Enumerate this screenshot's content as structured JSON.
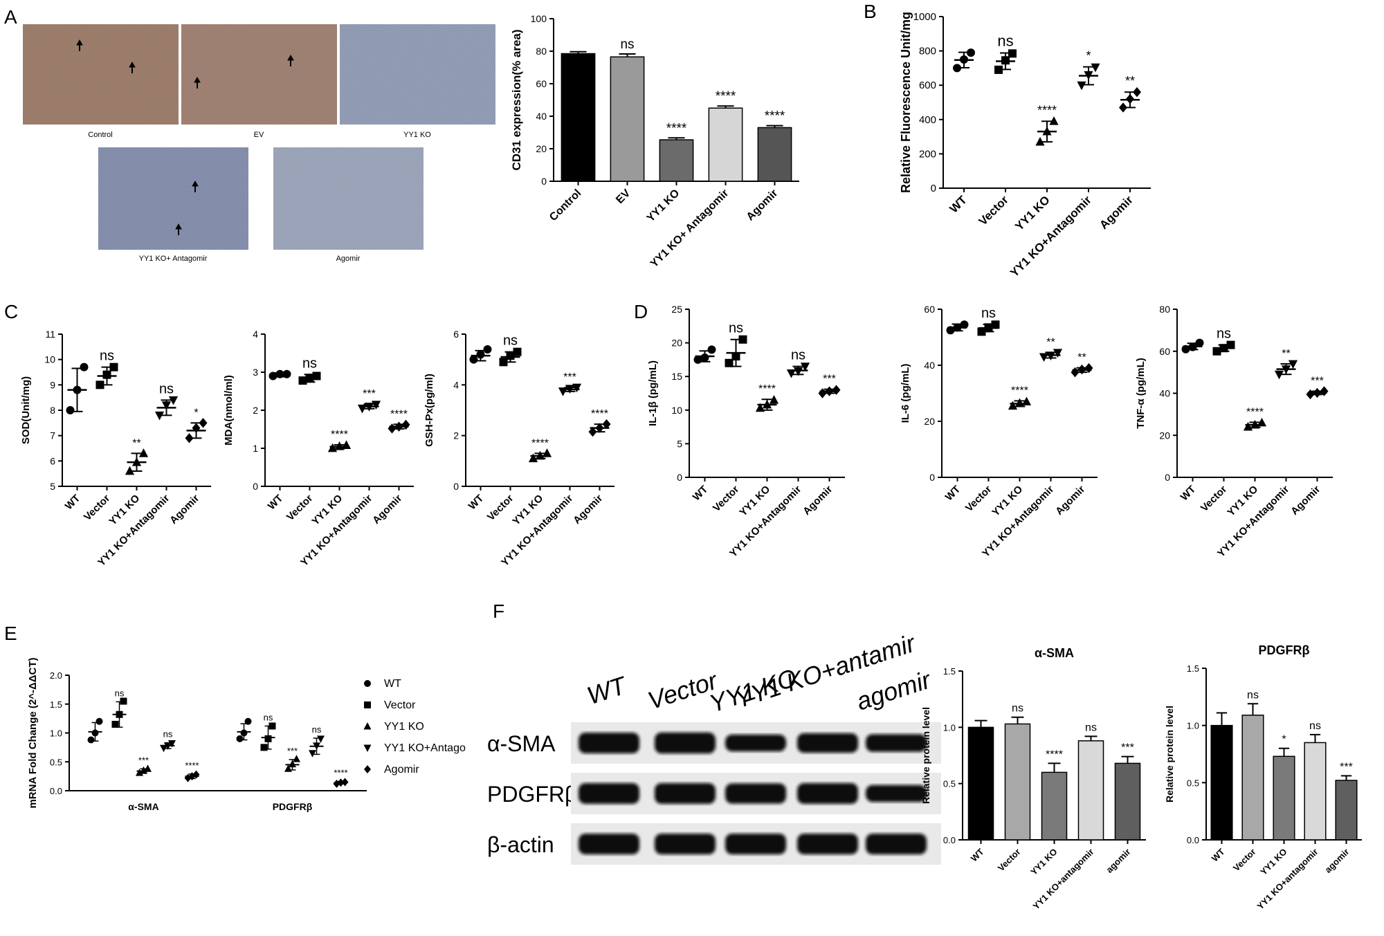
{
  "panels": {
    "a": "A",
    "b": "B",
    "c": "C",
    "d": "D",
    "e": "E",
    "f": "F"
  },
  "micrographs": {
    "captions": [
      "Control",
      "EV",
      "YY1 KO",
      "YY1  KO+ Antagomir",
      "Agomir"
    ],
    "tint": [
      "#a68572",
      "#a8897a",
      "#9aa6bf",
      "#8d97b6",
      "#a5aec4"
    ]
  },
  "blot": {
    "lanes": [
      "WT",
      "Vector",
      "YY1 KO",
      "YY1 KO+antamir",
      "agomir"
    ],
    "rows": [
      "α-SMA",
      "PDGFRβ",
      "β-actin"
    ],
    "intensity": [
      [
        1.0,
        1.03,
        0.6,
        0.88,
        0.68
      ],
      [
        1.0,
        1.0,
        0.95,
        1.0,
        0.6
      ],
      [
        1.0,
        1.0,
        1.0,
        1.0,
        1.0
      ]
    ]
  },
  "legend_e": [
    "WT",
    "Vector",
    "YY1 KO",
    "YY1 KO+Antago",
    "Agomir"
  ],
  "chart_data": [
    {
      "id": "cd31",
      "type": "bar",
      "categories": [
        "Control",
        "EV",
        "YY1 KO",
        "YY1 KO+ Antagomir",
        "Agomir"
      ],
      "values": [
        78.5,
        76.5,
        25.5,
        45,
        33
      ],
      "errors": [
        1.2,
        1.8,
        1.2,
        1.3,
        1.2
      ],
      "stars": [
        "",
        "ns",
        "****",
        "****",
        "****"
      ],
      "colors": [
        "#000000",
        "#9a9a9a",
        "#6b6b6b",
        "#d6d6d6",
        "#555555"
      ],
      "ylabel": "CD31 expression(% area)",
      "ylim": [
        0,
        100
      ],
      "yticks": [
        0,
        20,
        40,
        60,
        80,
        100
      ]
    },
    {
      "id": "ros",
      "type": "scatter",
      "categories": [
        "WT",
        "Vector",
        "YY1 KO",
        "YY1 KO+Antagomir",
        "Agomir"
      ],
      "points": [
        [
          700,
          750,
          790
        ],
        [
          690,
          745,
          785
        ],
        [
          270,
          330,
          390
        ],
        [
          600,
          660,
          705
        ],
        [
          470,
          520,
          560
        ]
      ],
      "means": [
        747,
        740,
        330,
        655,
        515
      ],
      "sds": [
        45,
        48,
        60,
        52,
        45
      ],
      "stars": [
        "",
        "ns",
        "****",
        "*",
        "**"
      ],
      "ylabel": "Relative Fluorescence Unit/mg",
      "ylim": [
        0,
        1000
      ],
      "yticks": [
        0,
        200,
        400,
        600,
        800,
        1000
      ]
    },
    {
      "id": "sod",
      "type": "scatter",
      "categories": [
        "WT",
        "Vector",
        "YY1 KO",
        "YY1 KO+Antagomir",
        "Agomir"
      ],
      "points": [
        [
          8.0,
          8.8,
          9.7
        ],
        [
          9.0,
          9.4,
          9.7
        ],
        [
          5.6,
          5.95,
          6.3
        ],
        [
          7.8,
          8.2,
          8.4
        ],
        [
          6.9,
          7.3,
          7.5
        ]
      ],
      "means": [
        8.8,
        9.35,
        5.95,
        8.1,
        7.2
      ],
      "sds": [
        0.85,
        0.35,
        0.35,
        0.3,
        0.3
      ],
      "stars": [
        "",
        "ns",
        "**",
        "ns",
        "*"
      ],
      "ylabel": "SOD(Unit/mg)",
      "ylim": [
        5,
        11
      ],
      "yticks": [
        5,
        6,
        7,
        8,
        9,
        10,
        11
      ]
    },
    {
      "id": "mda",
      "type": "scatter",
      "categories": [
        "WT",
        "Vector",
        "YY1 KO",
        "YY1 KO+Antagomir",
        "Agomir"
      ],
      "points": [
        [
          2.9,
          2.95,
          2.95
        ],
        [
          2.78,
          2.85,
          2.9
        ],
        [
          1.0,
          1.05,
          1.08
        ],
        [
          2.05,
          2.1,
          2.15
        ],
        [
          1.52,
          1.57,
          1.62
        ]
      ],
      "means": [
        2.93,
        2.84,
        1.04,
        2.1,
        1.57
      ],
      "sds": [
        0.05,
        0.1,
        0.05,
        0.06,
        0.06
      ],
      "stars": [
        "",
        "ns",
        "****",
        "***",
        "****"
      ],
      "ylabel": "MDA(nmol/ml)",
      "ylim": [
        0,
        4
      ],
      "yticks": [
        0,
        1,
        2,
        3,
        4
      ]
    },
    {
      "id": "gsh",
      "type": "scatter",
      "categories": [
        "WT",
        "Vector",
        "YY1 KO",
        "YY1 KO+Antagomir",
        "Agomir"
      ],
      "points": [
        [
          5.0,
          5.2,
          5.4
        ],
        [
          4.9,
          5.15,
          5.3
        ],
        [
          1.1,
          1.2,
          1.3
        ],
        [
          3.75,
          3.85,
          3.9
        ],
        [
          2.15,
          2.3,
          2.45
        ]
      ],
      "means": [
        5.15,
        5.1,
        1.2,
        3.82,
        2.3
      ],
      "sds": [
        0.2,
        0.2,
        0.1,
        0.08,
        0.15
      ],
      "stars": [
        "",
        "ns",
        "****",
        "***",
        "****"
      ],
      "ylabel": "GSH-Px(pg/ml)",
      "ylim": [
        0,
        6
      ],
      "yticks": [
        0,
        2,
        4,
        6
      ]
    },
    {
      "id": "il1b",
      "type": "scatter",
      "categories": [
        "WT",
        "Vector",
        "YY1 KO",
        "YY1 KO+Antagomir",
        "Agomir"
      ],
      "points": [
        [
          17.5,
          17.8,
          19.0
        ],
        [
          17.0,
          18.0,
          20.5
        ],
        [
          10.3,
          10.8,
          11.5
        ],
        [
          15.5,
          15.8,
          16.5
        ],
        [
          12.5,
          12.8,
          13.0
        ]
      ],
      "means": [
        18.0,
        18.5,
        10.8,
        15.9,
        12.8
      ],
      "sds": [
        0.8,
        2.0,
        0.8,
        0.6,
        0.3
      ],
      "stars": [
        "",
        "ns",
        "****",
        "ns",
        "***"
      ],
      "ylabel": "IL-1β (pg/mL)",
      "ylim": [
        0,
        25
      ],
      "yticks": [
        0,
        5,
        10,
        15,
        20,
        25
      ]
    },
    {
      "id": "il6",
      "type": "scatter",
      "categories": [
        "WT",
        "Vector",
        "YY1 KO",
        "YY1 KO+Antagomir",
        "Agomir"
      ],
      "points": [
        [
          52.5,
          53.5,
          54.5
        ],
        [
          52,
          53.5,
          54.5
        ],
        [
          25.5,
          26.5,
          27.0
        ],
        [
          43,
          43.5,
          44.5
        ],
        [
          37.5,
          38.5,
          39.0
        ]
      ],
      "means": [
        53.5,
        53.3,
        26.3,
        43.6,
        38.3
      ],
      "sds": [
        1.2,
        1.3,
        1.0,
        1.0,
        0.8
      ],
      "stars": [
        "",
        "ns",
        "****",
        "**",
        "**"
      ],
      "ylabel": "IL-6 (pg/mL)",
      "ylim": [
        0,
        60
      ],
      "yticks": [
        0,
        20,
        40,
        60
      ]
    },
    {
      "id": "tnf",
      "type": "scatter",
      "categories": [
        "WT",
        "Vector",
        "YY1 KO",
        "YY1 KO+Antagomir",
        "Agomir"
      ],
      "points": [
        [
          61,
          62,
          64
        ],
        [
          60,
          61.5,
          63
        ],
        [
          24,
          25,
          26
        ],
        [
          49,
          51.5,
          54
        ],
        [
          39.5,
          40.2,
          41
        ]
      ],
      "means": [
        62.3,
        61.5,
        25.0,
        51.5,
        40.2
      ],
      "sds": [
        1.5,
        1.5,
        1.2,
        2.5,
        0.8
      ],
      "stars": [
        "",
        "ns",
        "****",
        "**",
        "***"
      ],
      "ylabel": "TNF-α (pg/mL)",
      "ylim": [
        0,
        80
      ],
      "yticks": [
        0,
        20,
        40,
        60,
        80
      ]
    },
    {
      "id": "mrna",
      "type": "scatter",
      "groups": [
        "α-SMA",
        "PDGFRβ"
      ],
      "series": [
        {
          "name": "WT",
          "marker": "circle",
          "points": [
            [
              0.88,
              1.0,
              1.2
            ],
            [
              0.9,
              1.0,
              1.2
            ]
          ],
          "means": [
            1.02,
            1.02
          ],
          "sds": [
            0.16,
            0.14
          ]
        },
        {
          "name": "Vector",
          "marker": "square",
          "points": [
            [
              1.15,
              1.32,
              1.55
            ],
            [
              0.75,
              0.9,
              1.12
            ]
          ],
          "means": [
            1.32,
            0.92
          ],
          "sds": [
            0.22,
            0.2
          ]
        },
        {
          "name": "YY1 KO",
          "marker": "triangle-up",
          "points": [
            [
              0.31,
              0.35,
              0.38
            ],
            [
              0.38,
              0.46,
              0.55
            ]
          ],
          "means": [
            0.34,
            0.45
          ],
          "sds": [
            0.04,
            0.09
          ]
        },
        {
          "name": "YY1 KO+Antago",
          "marker": "triangle-down",
          "points": [
            [
              0.74,
              0.78,
              0.82
            ],
            [
              0.65,
              0.78,
              0.9
            ]
          ],
          "means": [
            0.78,
            0.77
          ],
          "sds": [
            0.05,
            0.14
          ]
        },
        {
          "name": "Agomir",
          "marker": "diamond",
          "points": [
            [
              0.22,
              0.25,
              0.28
            ],
            [
              0.12,
              0.14,
              0.15
            ]
          ],
          "means": [
            0.25,
            0.14
          ],
          "sds": [
            0.04,
            0.02
          ]
        }
      ],
      "stars": [
        [
          "",
          "ns",
          "***",
          "ns",
          "****"
        ],
        [
          "",
          "ns",
          "***",
          "ns",
          "****"
        ]
      ],
      "ylabel": "mRNA Fold Change (2^-ΔΔCT)",
      "ylim": [
        0,
        2.0
      ],
      "yticks": [
        0.0,
        0.5,
        1.0,
        1.5,
        2.0
      ]
    },
    {
      "id": "asma",
      "type": "bar",
      "title": "α-SMA",
      "categories": [
        "WT",
        "Vector",
        "YY1 KO",
        "YY1 KO+antagomir",
        "agomir"
      ],
      "values": [
        1.0,
        1.03,
        0.6,
        0.88,
        0.68
      ],
      "errors": [
        0.06,
        0.06,
        0.08,
        0.04,
        0.06
      ],
      "stars": [
        "",
        "ns",
        "****",
        "ns",
        "***"
      ],
      "colors": [
        "#000000",
        "#a8a8a8",
        "#7a7a7a",
        "#d9d9d9",
        "#5f5f5f"
      ],
      "ylabel": "Relative protein level",
      "ylim": [
        0,
        1.5
      ],
      "yticks": [
        0.0,
        0.5,
        1.0,
        1.5
      ]
    },
    {
      "id": "pdgfrb",
      "type": "bar",
      "title": "PDGFRβ",
      "categories": [
        "WT",
        "Vector",
        "YY1 KO",
        "YY1 KO+antagomir",
        "agomir"
      ],
      "values": [
        1.0,
        1.09,
        0.73,
        0.85,
        0.52
      ],
      "errors": [
        0.11,
        0.1,
        0.07,
        0.07,
        0.04
      ],
      "stars": [
        "",
        "ns",
        "*",
        "ns",
        "***"
      ],
      "colors": [
        "#000000",
        "#a8a8a8",
        "#7a7a7a",
        "#d9d9d9",
        "#5f5f5f"
      ],
      "ylabel": "Relative protein level",
      "ylim": [
        0,
        1.5
      ],
      "yticks": [
        0.0,
        0.5,
        1.0,
        1.5
      ]
    }
  ]
}
